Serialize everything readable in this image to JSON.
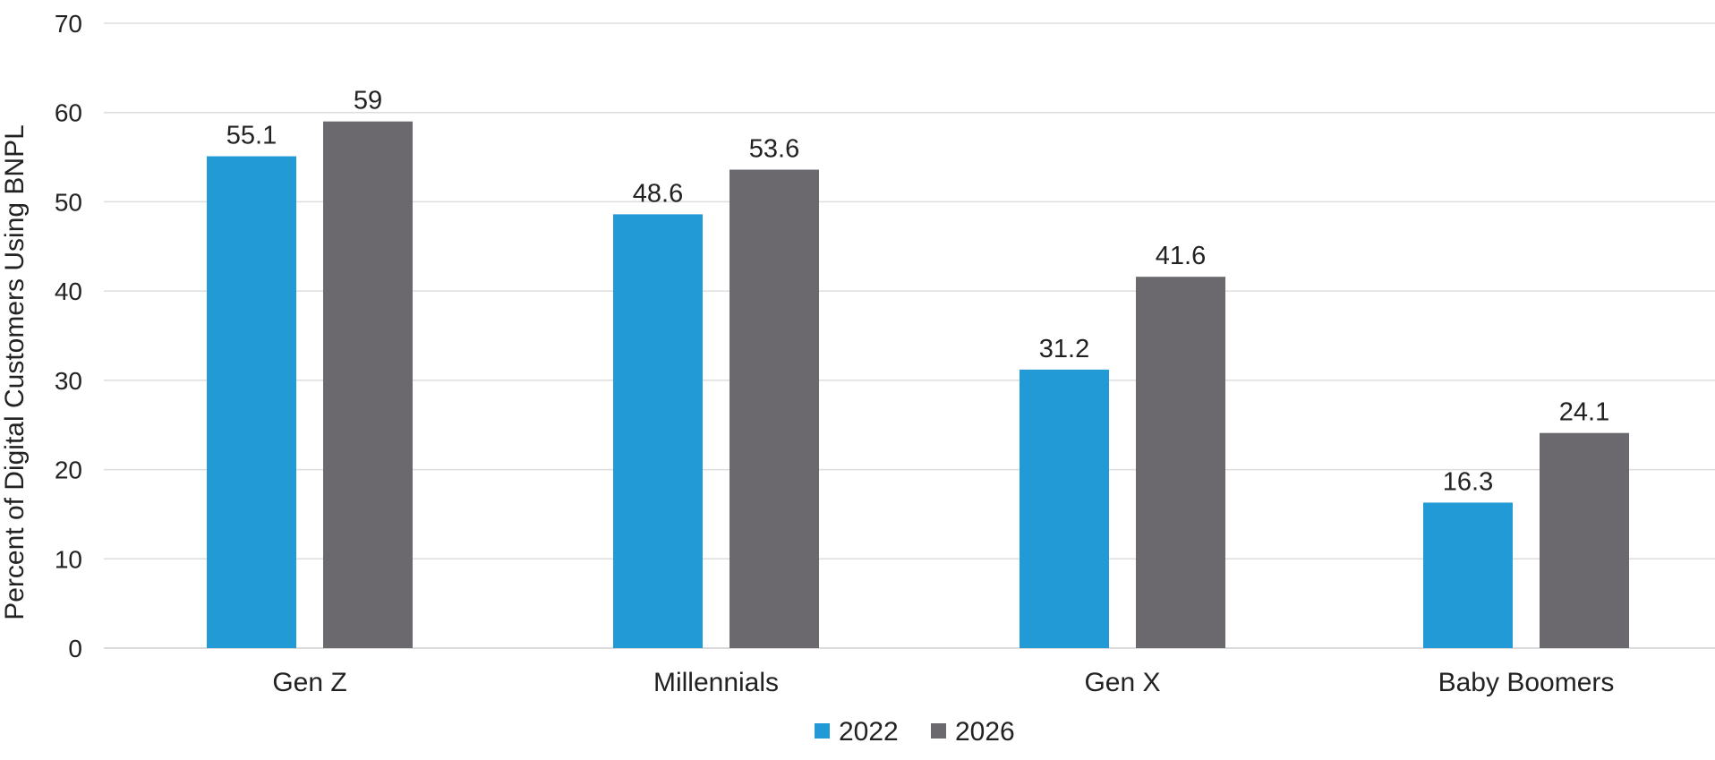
{
  "chart_data": {
    "type": "bar",
    "title": "",
    "xlabel": "",
    "ylabel": "Percent of Digital Customers Using BNPL",
    "categories": [
      "Gen Z",
      "Millennials",
      "Gen X",
      "Baby Boomers"
    ],
    "series": [
      {
        "name": "2022",
        "values": [
          55.1,
          48.6,
          31.2,
          16.3
        ],
        "color": "#229ad6"
      },
      {
        "name": "2026",
        "values": [
          59,
          53.6,
          41.6,
          24.1
        ],
        "color": "#6b696d"
      }
    ],
    "ylim": [
      0,
      70
    ],
    "yticks": [
      "0",
      "10",
      "20",
      "30",
      "40",
      "50",
      "60",
      "70"
    ],
    "grid": true,
    "legend_position": "bottom-center"
  }
}
